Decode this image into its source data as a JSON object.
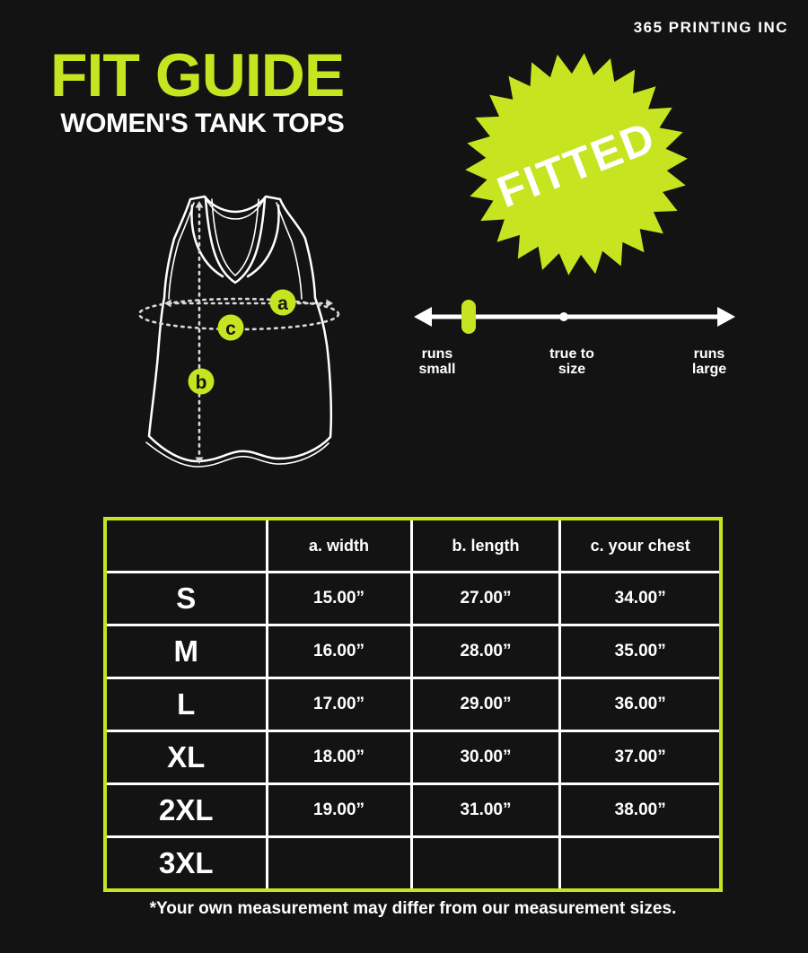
{
  "brand": "365 PRINTING INC",
  "header": {
    "title": "FIT GUIDE",
    "subtitle": "WOMEN'S TANK TOPS"
  },
  "fit_badge": {
    "label": "FITTED"
  },
  "fit_scale": {
    "marker_at": "runs small",
    "labels": [
      {
        "line1": "runs",
        "line2": "small"
      },
      {
        "line1": "true to",
        "line2": "size"
      },
      {
        "line1": "runs",
        "line2": "large"
      }
    ]
  },
  "diagram": {
    "markers": [
      "a",
      "b",
      "c"
    ]
  },
  "chart_data": {
    "type": "table",
    "columns": [
      "",
      "a. width",
      "b. length",
      "c. your chest"
    ],
    "rows": [
      [
        "S",
        "15.00”",
        "27.00”",
        "34.00”"
      ],
      [
        "M",
        "16.00”",
        "28.00”",
        "35.00”"
      ],
      [
        "L",
        "17.00”",
        "29.00”",
        "36.00”"
      ],
      [
        "XL",
        "18.00”",
        "30.00”",
        "37.00”"
      ],
      [
        "2XL",
        "19.00”",
        "31.00”",
        "38.00”"
      ],
      [
        "3XL",
        "",
        "",
        ""
      ]
    ]
  },
  "footnote": "*Your own measurement may differ from our measurement sizes.",
  "colors": {
    "accent": "#c6e41f",
    "background": "#131314",
    "text": "#ffffff",
    "table_grid": "#ffffff",
    "marker_letter": "#141414"
  }
}
